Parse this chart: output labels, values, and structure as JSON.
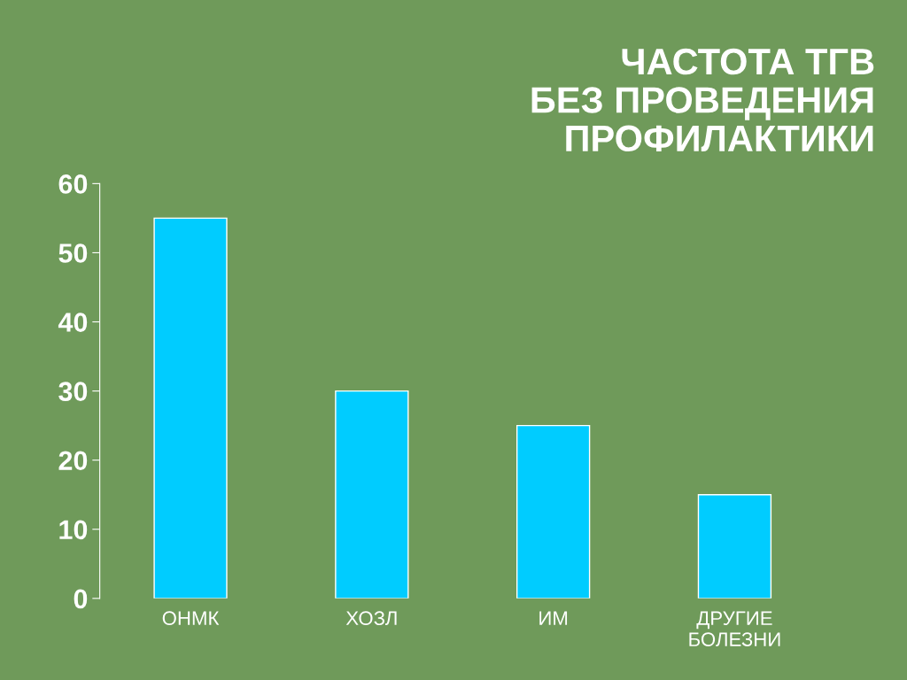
{
  "chart_data": {
    "type": "bar",
    "title": "ЧАСТОТА ТГВ\nБЕЗ ПРОВЕДЕНИЯ\nПРОФИЛАКТИКИ",
    "categories": [
      "ОНМК",
      "ХОЗЛ",
      "ИМ",
      "ДРУГИЕ\nБОЛЕЗНИ"
    ],
    "values": [
      55,
      30,
      25,
      15
    ],
    "color": "#00ccff",
    "ylim": [
      0,
      60
    ],
    "yticks": [
      0,
      10,
      20,
      30,
      40,
      50,
      60
    ],
    "grid": false
  }
}
